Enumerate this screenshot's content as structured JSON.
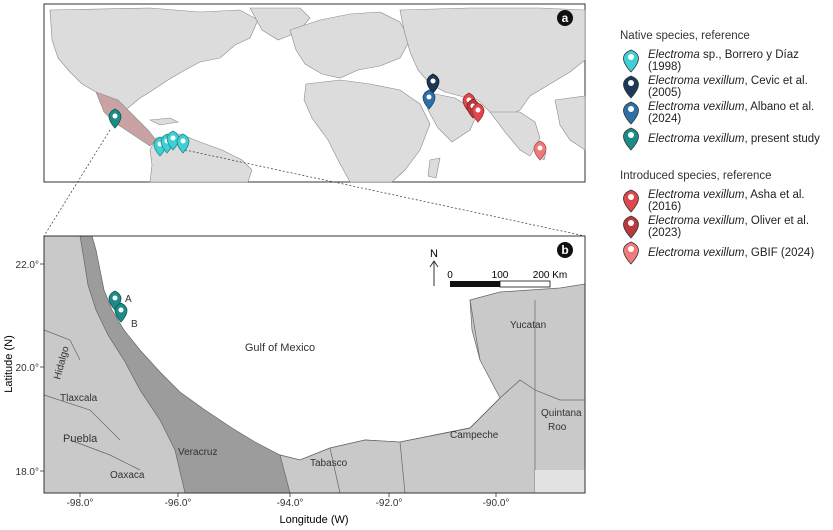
{
  "panel_a": {
    "label": "a"
  },
  "panel_b": {
    "label": "b",
    "gulf_label": "Gulf of Mexico",
    "region_labels": {
      "yucatan": "Yucatan",
      "quintana_roo_1": "Quintana",
      "quintana_roo_2": "Roo",
      "campeche": "Campeche",
      "tabasco": "Tabasco",
      "veracruz": "Veracruz",
      "oaxaca": "Oaxaca",
      "puebla": "Puebla",
      "tlaxcala": "Tlaxcala",
      "hidalgo": "Hidalgo"
    },
    "site_labels": {
      "a": "A",
      "b": "B"
    },
    "north_label": "N",
    "scale": {
      "ticks": [
        "0",
        "100",
        "200 Km"
      ]
    },
    "xlabel": "Longitude (W)",
    "ylabel": "Latitude (N)",
    "xticks": [
      "-98.0°",
      "-96.0°",
      "-94.0°",
      "-92.0°",
      "-90.0°"
    ],
    "yticks": [
      "22.0°",
      "20.0°",
      "18.0°"
    ]
  },
  "legend": {
    "native_header": "Native species, reference",
    "native": [
      {
        "species": "Electroma",
        "rest": " sp., Borrero y Díaz (1998)",
        "color": "#3fd0d6"
      },
      {
        "species": "Electroma vexillum",
        "rest": ", Cevic et al. (2005)",
        "color": "#1c3957"
      },
      {
        "species": "Electroma vexillum",
        "rest": ", Albano et al. (2024)",
        "color": "#2f6fa8"
      },
      {
        "species": "Electroma vexillum",
        "rest": ", present study",
        "color": "#1d8c88"
      }
    ],
    "introduced_header": "Introduced species, reference",
    "introduced": [
      {
        "species": "Electroma vexillum",
        "rest": ", Asha et al. (2016)",
        "color": "#e0474c"
      },
      {
        "species": "Electroma vexillum",
        "rest": ", Oliver et al. (2023)",
        "color": "#b83a3c"
      },
      {
        "species": "Electroma vexillum",
        "rest": ", GBIF (2024)",
        "color": "#f07a7a"
      }
    ]
  }
}
